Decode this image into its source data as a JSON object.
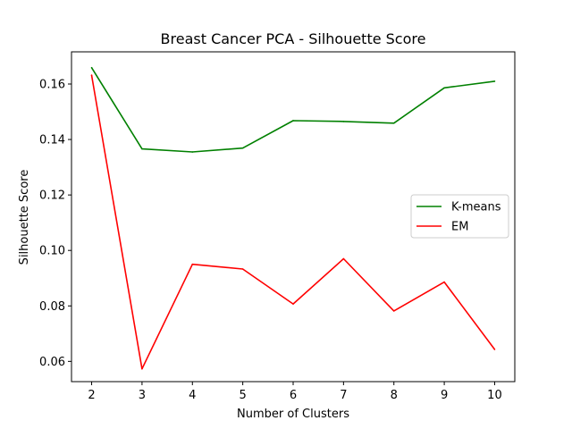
{
  "chart_data": {
    "type": "line",
    "title": "Breast Cancer PCA - Silhouette Score",
    "xlabel": "Number of Clusters",
    "ylabel": "Silhouette Score",
    "x": [
      2,
      3,
      4,
      5,
      6,
      7,
      8,
      9,
      10
    ],
    "xticks": [
      "2",
      "3",
      "4",
      "5",
      "6",
      "7",
      "8",
      "9",
      "10"
    ],
    "yticks": [
      "0.06",
      "0.08",
      "0.10",
      "0.12",
      "0.14",
      "0.16"
    ],
    "ytick_values": [
      0.06,
      0.08,
      0.1,
      0.12,
      0.14,
      0.16
    ],
    "xlim": [
      1.6,
      10.4
    ],
    "ylim": [
      0.0527,
      0.1716
    ],
    "grid": false,
    "legend_position": "center-right",
    "series": [
      {
        "name": "K-means",
        "color": "#008000",
        "values": [
          0.1659,
          0.1366,
          0.1355,
          0.1369,
          0.1468,
          0.1465,
          0.1459,
          0.1586,
          0.161
        ]
      },
      {
        "name": "EM",
        "color": "#ff0000",
        "values": [
          0.1632,
          0.0573,
          0.095,
          0.0933,
          0.0807,
          0.097,
          0.0782,
          0.0886,
          0.0643
        ]
      }
    ]
  }
}
